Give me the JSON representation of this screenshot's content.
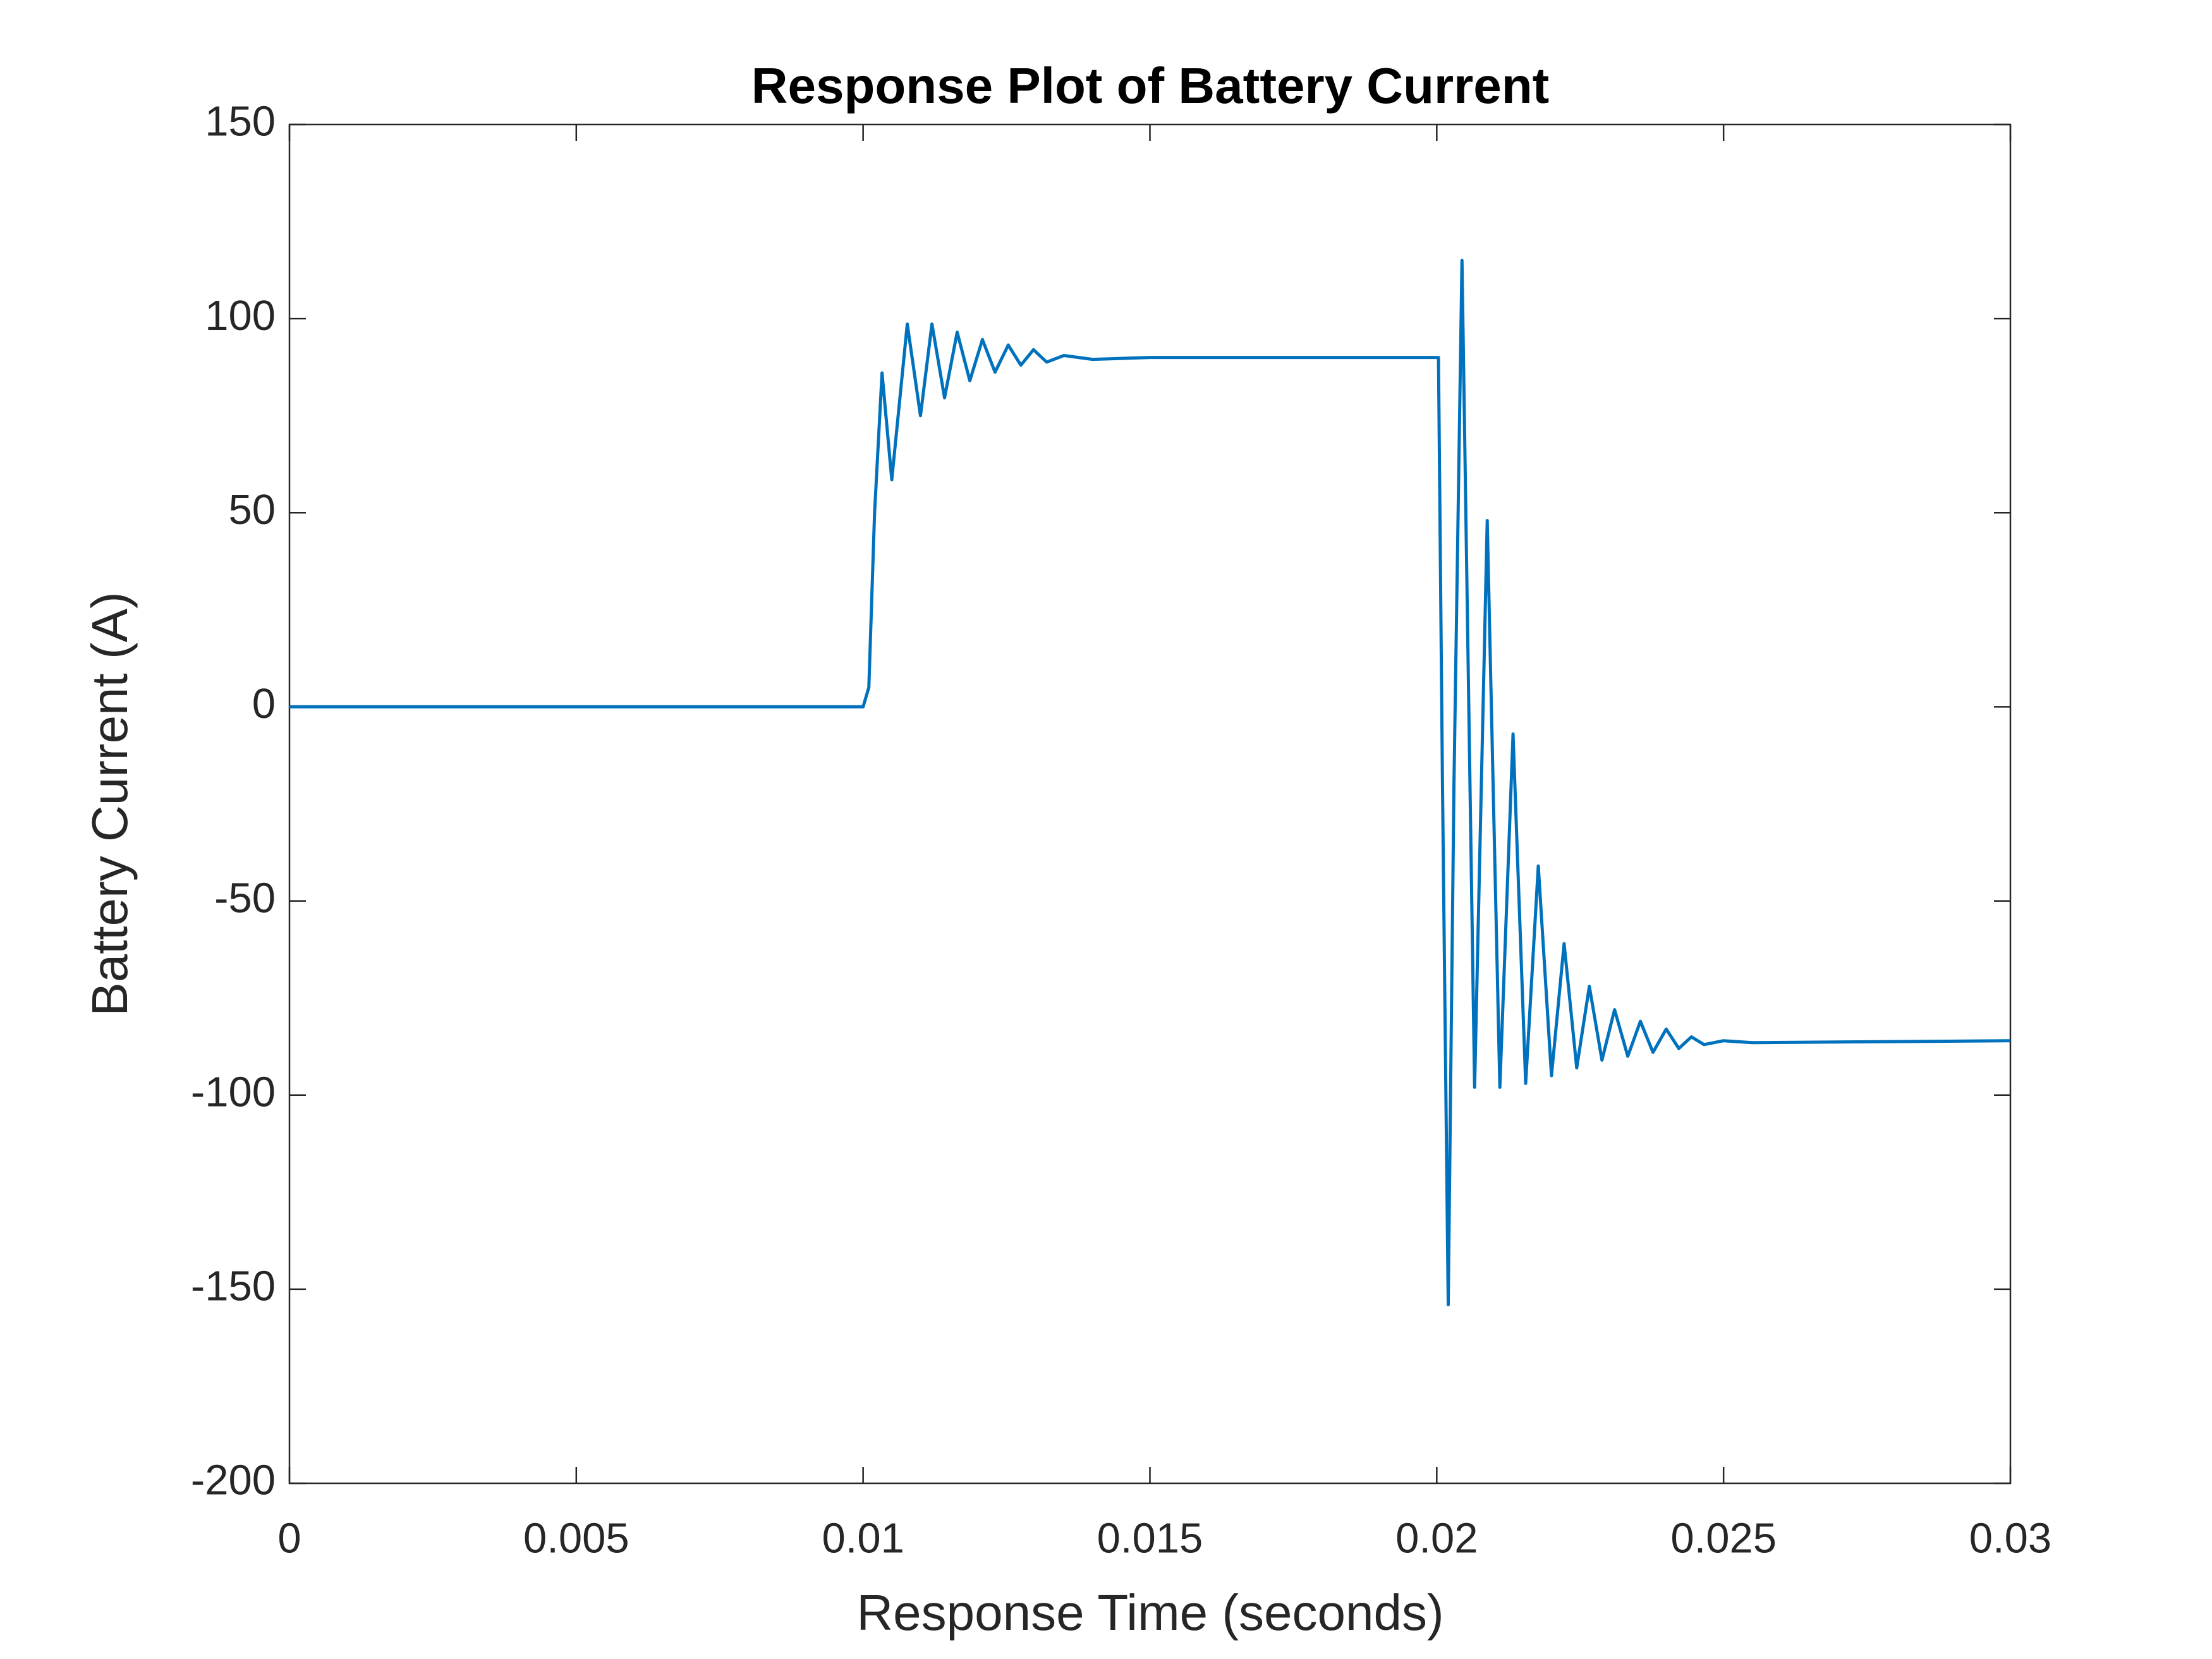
{
  "chart_data": {
    "type": "line",
    "title": "Response Plot of Battery Current",
    "x_label": "Response Time (seconds)",
    "y_label": "Battery Current (A)",
    "x": [
      0,
      0.002,
      0.005,
      0.01,
      0.0101,
      0.0102,
      0.01033,
      0.0105,
      0.01077,
      0.011,
      0.0112,
      0.01142,
      0.01164,
      0.01186,
      0.01208,
      0.0123,
      0.01253,
      0.01275,
      0.01297,
      0.0132,
      0.0135,
      0.014,
      0.015,
      0.02,
      0.02003,
      0.0201,
      0.0202,
      0.0203,
      0.02044,
      0.02066,
      0.02088,
      0.0211,
      0.02133,
      0.02155,
      0.02177,
      0.022,
      0.02222,
      0.02244,
      0.02266,
      0.02288,
      0.0231,
      0.02333,
      0.02355,
      0.02377,
      0.024,
      0.02422,
      0.02444,
      0.02466,
      0.025,
      0.0255,
      0.03
    ],
    "series": [
      {
        "name": "Battery Current",
        "color": "#0072bd",
        "values": [
          0,
          0,
          0,
          0,
          5,
          50,
          86,
          58.5,
          98.6,
          75,
          98.6,
          79.6,
          96.5,
          84,
          94.6,
          86.2,
          93.2,
          88,
          92,
          88.8,
          90.5,
          89.5,
          90,
          90,
          90,
          -20,
          -154,
          -20,
          115,
          -98,
          48,
          -98,
          -7,
          -97,
          -41,
          -95,
          -61,
          -93,
          -72,
          -91,
          -78,
          -90,
          -81,
          -89,
          -83,
          -88,
          -85,
          -87,
          -86,
          -86.5,
          -86
        ]
      }
    ],
    "xlim": [
      0,
      0.03
    ],
    "xticks": [
      0,
      0.005,
      0.01,
      0.015,
      0.02,
      0.025,
      0.03
    ],
    "ylim": [
      -200,
      150
    ],
    "yticks": [
      -200,
      -150,
      -100,
      -50,
      0,
      50,
      100,
      150
    ]
  }
}
